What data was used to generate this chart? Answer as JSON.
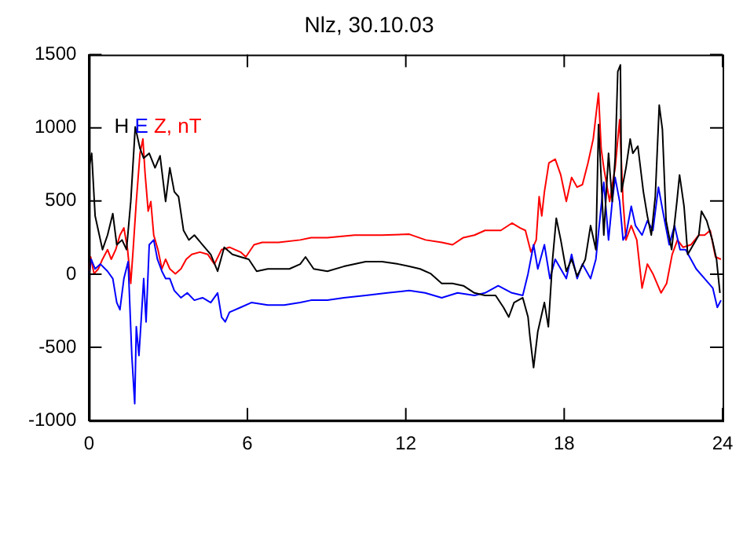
{
  "chart_data": {
    "type": "line",
    "title": "Nlz, 30.10.03",
    "annotations": [
      ", nT"
    ],
    "legend": "top left",
    "grid": false,
    "marker": "none",
    "line_style": "solid",
    "xlim": [
      0,
      24
    ],
    "xticks": [
      0,
      6,
      12,
      18,
      24
    ],
    "ylim": [
      -1000,
      1500
    ],
    "yticks": [
      -1000,
      -500,
      0,
      500,
      1000,
      1500
    ],
    "series": [
      {
        "name": "H",
        "color": "#000000",
        "x": [
          0,
          0.1,
          0.23,
          0.35,
          0.51,
          0.7,
          0.9,
          1.05,
          1.25,
          1.42,
          1.58,
          1.75,
          1.93,
          2.07,
          2.28,
          2.5,
          2.69,
          2.9,
          3.06,
          3.23,
          3.39,
          3.58,
          3.78,
          3.99,
          4.3,
          4.61,
          4.87,
          5.12,
          5.43,
          5.74,
          6.05,
          6.35,
          6.77,
          7.18,
          7.59,
          8,
          8.2,
          8.51,
          9.03,
          9.65,
          10.48,
          11.1,
          11.72,
          12.13,
          12.54,
          12.95,
          13.36,
          13.77,
          14.18,
          14.6,
          15,
          15.4,
          15.7,
          15.9,
          16.1,
          16.43,
          16.63,
          16.7,
          16.84,
          17,
          17.25,
          17.4,
          17.56,
          17.7,
          17.87,
          18.08,
          18.28,
          18.49,
          18.8,
          19,
          19.2,
          19.3,
          19.4,
          19.5,
          19.68,
          19.82,
          19.93,
          20.03,
          20.13,
          20.17,
          20.34,
          20.5,
          20.6,
          20.79,
          21,
          21.15,
          21.3,
          21.45,
          21.6,
          21.72,
          21.86,
          22.07,
          22.27,
          22.37,
          22.54,
          22.68,
          22.89,
          23.1,
          23.2,
          23.4,
          23.61,
          23.77,
          23.9
        ],
        "values": [
          727,
          826,
          398,
          299,
          168,
          267,
          414,
          201,
          234,
          168,
          497,
          1007,
          859,
          793,
          826,
          727,
          809,
          497,
          727,
          563,
          530,
          299,
          234,
          267,
          201,
          135,
          20,
          184,
          135,
          118,
          102,
          20,
          36,
          36,
          36,
          69,
          118,
          36,
          20,
          53,
          86,
          86,
          69,
          53,
          36,
          3,
          -63,
          -63,
          -79,
          -128,
          -145,
          -145,
          -227,
          -293,
          -194,
          -161,
          -293,
          -424,
          -638,
          -392,
          -194,
          -359,
          102,
          382,
          234,
          20,
          102,
          -13,
          102,
          332,
          168,
          1023,
          661,
          267,
          826,
          497,
          793,
          1385,
          1430,
          563,
          727,
          924,
          826,
          875,
          563,
          398,
          267,
          530,
          1155,
          990,
          365,
          168,
          497,
          678,
          464,
          135,
          201,
          267,
          431,
          365,
          234,
          102,
          -128
        ]
      },
      {
        "name": "E",
        "color": "#0000ff",
        "x": [
          0,
          0.08,
          0.23,
          0.43,
          0.7,
          0.9,
          1.05,
          1.17,
          1.32,
          1.48,
          1.62,
          1.73,
          1.79,
          1.89,
          1.97,
          2.07,
          2.16,
          2.28,
          2.45,
          2.59,
          2.76,
          2.9,
          3.06,
          3.23,
          3.48,
          3.72,
          3.99,
          4.3,
          4.61,
          4.87,
          5.02,
          5.16,
          5.32,
          5.74,
          6.15,
          6.77,
          7.39,
          8,
          8.41,
          9.03,
          9.65,
          10.48,
          11.3,
          12.13,
          12.73,
          13.36,
          13.96,
          14.6,
          15,
          15.5,
          16.02,
          16.43,
          16.63,
          16.84,
          17,
          17.25,
          17.46,
          17.66,
          17.87,
          18.08,
          18.28,
          18.49,
          18.69,
          19,
          19.2,
          19.4,
          19.5,
          19.68,
          19.82,
          19.93,
          20.1,
          20.23,
          20.34,
          20.54,
          20.7,
          20.95,
          21.15,
          21.36,
          21.57,
          21.77,
          21.98,
          22.18,
          22.39,
          22.6,
          22.8,
          23,
          23.32,
          23.63,
          23.8,
          23.94
        ],
        "values": [
          -13,
          102,
          36,
          69,
          20,
          -30,
          -194,
          -243,
          -30,
          86,
          -556,
          -885,
          -359,
          -556,
          -326,
          -30,
          -326,
          201,
          234,
          102,
          20,
          -30,
          -30,
          -112,
          -161,
          -128,
          -178,
          -161,
          -194,
          -128,
          -293,
          -326,
          -260,
          -227,
          -194,
          -211,
          -211,
          -194,
          -178,
          -178,
          -161,
          -145,
          -128,
          -112,
          -128,
          -161,
          -128,
          -145,
          -128,
          -79,
          -128,
          -145,
          3,
          201,
          36,
          201,
          -30,
          102,
          36,
          -30,
          135,
          -30,
          69,
          -30,
          102,
          464,
          628,
          234,
          497,
          661,
          497,
          234,
          267,
          464,
          332,
          267,
          365,
          299,
          595,
          398,
          201,
          332,
          168,
          168,
          102,
          36,
          -30,
          -95,
          -227,
          -178
        ]
      },
      {
        "name": "Z",
        "color": "#ff0000",
        "x": [
          0,
          0.06,
          0.19,
          0.35,
          0.51,
          0.7,
          0.84,
          1.01,
          1.17,
          1.32,
          1.46,
          1.58,
          1.67,
          1.79,
          1.93,
          2.04,
          2.12,
          2.24,
          2.34,
          2.45,
          2.61,
          2.76,
          2.9,
          3.06,
          3.27,
          3.48,
          3.68,
          3.89,
          4.2,
          4.5,
          4.75,
          5.02,
          5.32,
          5.74,
          5.94,
          6.25,
          6.56,
          7.18,
          8,
          8.41,
          9.03,
          10.06,
          11.1,
          12.13,
          12.75,
          13.36,
          13.77,
          14.18,
          14.6,
          15,
          15.6,
          16.02,
          16.33,
          16.53,
          16.74,
          16.94,
          17.05,
          17.15,
          17.25,
          17.42,
          17.66,
          17.87,
          18.08,
          18.28,
          18.49,
          18.69,
          18.9,
          19.1,
          19.3,
          19.4,
          19.5,
          19.72,
          19.93,
          20.1,
          20.23,
          20.34,
          20.54,
          20.75,
          20.95,
          21.15,
          21.36,
          21.67,
          21.88,
          22.09,
          22.29,
          22.5,
          22.8,
          23.1,
          23.32,
          23.53,
          23.73,
          23.94
        ],
        "values": [
          20,
          118,
          3,
          36,
          102,
          168,
          102,
          168,
          267,
          316,
          168,
          -63,
          168,
          497,
          826,
          924,
          694,
          431,
          497,
          267,
          168,
          36,
          102,
          36,
          3,
          36,
          102,
          135,
          151,
          135,
          69,
          168,
          184,
          151,
          118,
          201,
          217,
          217,
          234,
          250,
          250,
          267,
          267,
          273,
          234,
          217,
          201,
          250,
          267,
          299,
          299,
          349,
          316,
          299,
          151,
          234,
          530,
          398,
          563,
          760,
          786,
          678,
          497,
          661,
          595,
          612,
          760,
          924,
          1237,
          859,
          727,
          497,
          727,
          1056,
          497,
          234,
          332,
          234,
          -95,
          69,
          3,
          -128,
          -63,
          135,
          234,
          184,
          201,
          267,
          267,
          299,
          118,
          102
        ]
      }
    ]
  }
}
